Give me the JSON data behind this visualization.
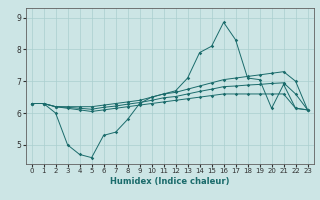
{
  "xlabel": "Humidex (Indice chaleur)",
  "xlim": [
    -0.5,
    23.5
  ],
  "ylim": [
    4.4,
    9.3
  ],
  "yticks": [
    5,
    6,
    7,
    8,
    9
  ],
  "xticks": [
    0,
    1,
    2,
    3,
    4,
    5,
    6,
    7,
    8,
    9,
    10,
    11,
    12,
    13,
    14,
    15,
    16,
    17,
    18,
    19,
    20,
    21,
    22,
    23
  ],
  "bg_color": "#cce5e5",
  "line_color": "#1a6b6b",
  "grid_color": "#aacfcf",
  "lines": [
    {
      "x": [
        0,
        1,
        2,
        3,
        4,
        5,
        6,
        7,
        8,
        9,
        10,
        11,
        12,
        13,
        14,
        15,
        16,
        17,
        18,
        19,
        20,
        21,
        22,
        23
      ],
      "y": [
        6.3,
        6.3,
        6.0,
        5.0,
        4.7,
        4.6,
        5.3,
        5.4,
        5.8,
        6.3,
        6.5,
        6.6,
        6.7,
        7.1,
        7.9,
        8.1,
        8.85,
        8.3,
        7.1,
        7.05,
        6.15,
        6.9,
        6.15,
        6.1
      ]
    },
    {
      "x": [
        0,
        1,
        2,
        3,
        4,
        5,
        6,
        7,
        8,
        9,
        10,
        11,
        12,
        13,
        14,
        15,
        16,
        17,
        18,
        19,
        20,
        21,
        22,
        23
      ],
      "y": [
        6.3,
        6.3,
        6.2,
        6.15,
        6.1,
        6.05,
        6.1,
        6.15,
        6.2,
        6.25,
        6.3,
        6.35,
        6.4,
        6.45,
        6.5,
        6.55,
        6.6,
        6.6,
        6.6,
        6.6,
        6.6,
        6.6,
        6.15,
        6.1
      ]
    },
    {
      "x": [
        0,
        1,
        2,
        3,
        4,
        5,
        6,
        7,
        8,
        9,
        10,
        11,
        12,
        13,
        14,
        15,
        16,
        17,
        18,
        19,
        20,
        21,
        22,
        23
      ],
      "y": [
        6.3,
        6.3,
        6.2,
        6.2,
        6.2,
        6.2,
        6.25,
        6.3,
        6.35,
        6.4,
        6.5,
        6.6,
        6.65,
        6.75,
        6.85,
        6.95,
        7.05,
        7.1,
        7.15,
        7.2,
        7.25,
        7.3,
        7.0,
        6.1
      ]
    },
    {
      "x": [
        0,
        1,
        2,
        3,
        4,
        5,
        6,
        7,
        8,
        9,
        10,
        11,
        12,
        13,
        14,
        15,
        16,
        17,
        18,
        19,
        20,
        21,
        22,
        23
      ],
      "y": [
        6.3,
        6.3,
        6.2,
        6.18,
        6.15,
        6.12,
        6.18,
        6.22,
        6.28,
        6.33,
        6.4,
        6.48,
        6.52,
        6.6,
        6.68,
        6.75,
        6.83,
        6.85,
        6.88,
        6.9,
        6.93,
        6.95,
        6.6,
        6.1
      ]
    }
  ]
}
